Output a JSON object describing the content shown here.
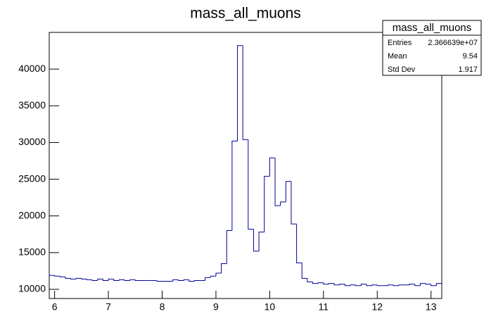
{
  "chart_data": {
    "type": "histogram",
    "title": "mass_all_muons",
    "bins": [
      5.9,
      6.0,
      6.1,
      6.2,
      6.3,
      6.4,
      6.5,
      6.6,
      6.7,
      6.8,
      6.9,
      7.0,
      7.1,
      7.2,
      7.3,
      7.4,
      7.5,
      7.6,
      7.7,
      7.8,
      7.9,
      8.0,
      8.1,
      8.2,
      8.3,
      8.4,
      8.5,
      8.6,
      8.7,
      8.8,
      8.9,
      9.0,
      9.1,
      9.2,
      9.3,
      9.4,
      9.5,
      9.6,
      9.7,
      9.8,
      9.9,
      10.0,
      10.1,
      10.2,
      10.3,
      10.4,
      10.5,
      10.6,
      10.7,
      10.8,
      10.9,
      11.0,
      11.1,
      11.2,
      11.3,
      11.4,
      11.5,
      11.6,
      11.7,
      11.8,
      11.9,
      12.0,
      12.1,
      12.2,
      12.3,
      12.4,
      12.5,
      12.6,
      12.7,
      12.8,
      12.9,
      13.0,
      13.1,
      13.2
    ],
    "values": [
      11900,
      11800,
      11700,
      11500,
      11400,
      11500,
      11400,
      11300,
      11200,
      11400,
      11200,
      11400,
      11200,
      11300,
      11200,
      11300,
      11200,
      11200,
      11200,
      11200,
      11100,
      11100,
      11100,
      11300,
      11200,
      11300,
      11100,
      11200,
      11200,
      11600,
      11800,
      12200,
      13500,
      18000,
      30200,
      43200,
      30400,
      18200,
      15200,
      17800,
      25400,
      27900,
      21400,
      21900,
      24700,
      18900,
      13600,
      11500,
      11000,
      10800,
      10900,
      10700,
      10800,
      10600,
      10700,
      10500,
      10600,
      10500,
      10700,
      10500,
      10600,
      10500,
      10500,
      10600,
      10500,
      10600,
      10600,
      10700,
      10500,
      10800,
      10700,
      10500,
      10800
    ],
    "color": "#000099",
    "xlim": [
      5.9,
      13.2
    ],
    "xticks": [
      6,
      7,
      8,
      9,
      10,
      11,
      12,
      13
    ],
    "ylim": [
      8750,
      45000
    ],
    "yticks": [
      10000,
      15000,
      20000,
      25000,
      30000,
      35000,
      40000
    ],
    "stats": {
      "title": "mass_all_muons",
      "rows": [
        {
          "label": "Entries",
          "value": "2.366639e+07"
        },
        {
          "label": "Mean",
          "value": "9.54"
        },
        {
          "label": "Std Dev",
          "value": "1.917"
        }
      ]
    }
  }
}
